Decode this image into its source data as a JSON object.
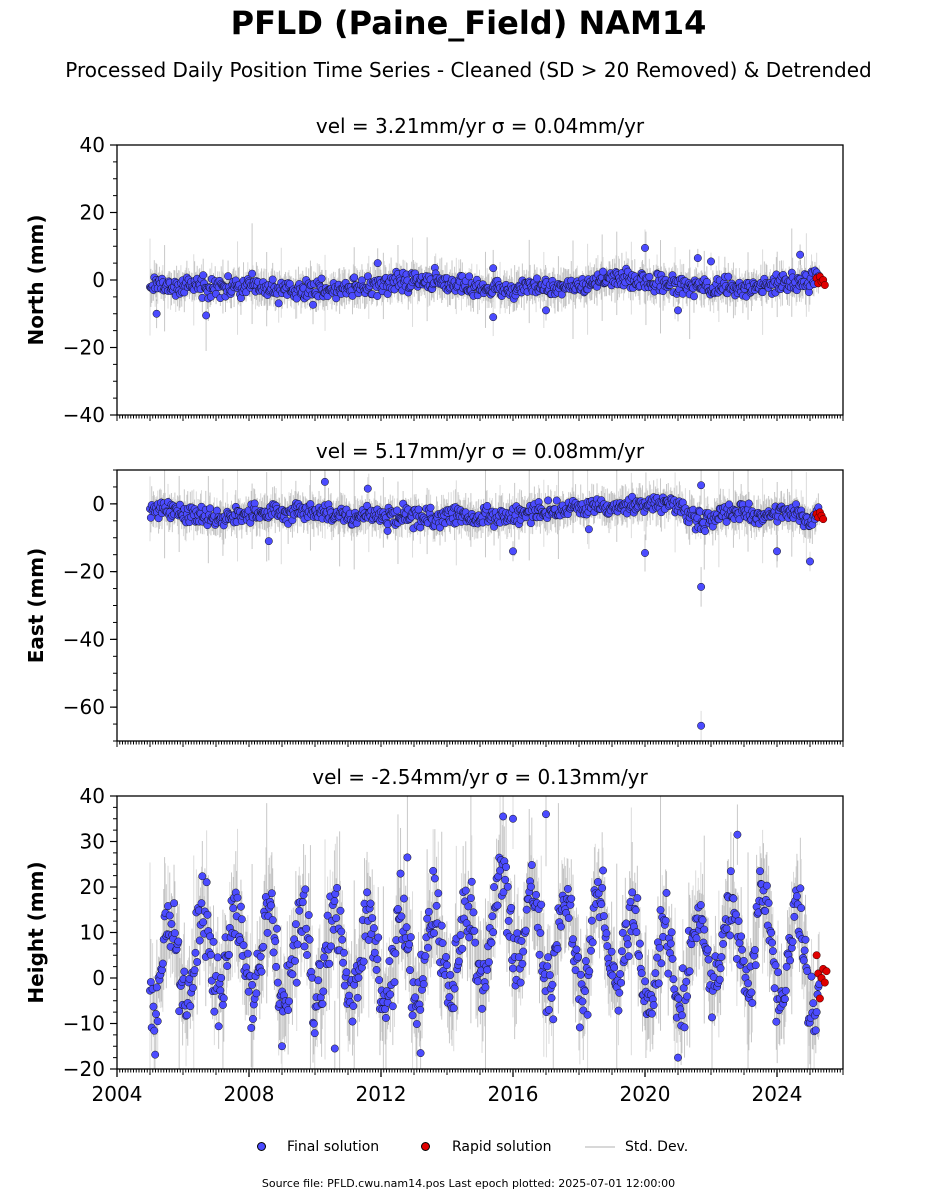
{
  "title": "PFLD (Paine_Field) NAM14",
  "subtitle": "Processed Daily Position Time Series - Cleaned (SD > 20 Removed) & Detrended",
  "footer": "Source file: PFLD.cwu.nam14.pos  Last epoch plotted: 2025-07-01 12:00:00",
  "legend": {
    "final": "Final solution",
    "rapid": "Rapid solution",
    "stddev": "Std. Dev."
  },
  "colors": {
    "final": "#4b4bff",
    "rapid": "#e00000",
    "stddev": "#d8d8d8",
    "errband": "#555555"
  },
  "chart_data": [
    {
      "type": "scatter",
      "title": "vel = 3.21mm/yr   σ = 0.04mm/yr",
      "vel_text": "vel = 3.21mm/yr",
      "sigma_text": "σ = 0.04mm/yr",
      "ylabel": "North (mm)",
      "ylim": [
        -40,
        40
      ],
      "yticks": [
        40,
        20,
        0,
        -20,
        -40
      ],
      "xlim": [
        2004.0,
        2026.0
      ],
      "series": [
        {
          "name": "Final solution",
          "noise": 1.4,
          "amp": 0.0,
          "knots": [
            [
              2005.0,
              -2
            ],
            [
              2006.0,
              -1.5
            ],
            [
              2008.0,
              -2.5
            ],
            [
              2010.0,
              -3
            ],
            [
              2012.0,
              -1.5
            ],
            [
              2013.0,
              0
            ],
            [
              2014.0,
              -1
            ],
            [
              2015.5,
              -3
            ],
            [
              2016.5,
              -2
            ],
            [
              2018.0,
              -2
            ],
            [
              2019.0,
              0.5
            ],
            [
              2020.5,
              -1
            ],
            [
              2022.0,
              -2.5
            ],
            [
              2023.5,
              -2
            ],
            [
              2025.0,
              -0.5
            ],
            [
              2025.3,
              0
            ]
          ],
          "outliers": [
            [
              2005.2,
              -10
            ],
            [
              2006.7,
              -10.5
            ],
            [
              2015.4,
              -11
            ],
            [
              2015.4,
              3.5
            ],
            [
              2017.0,
              -9
            ],
            [
              2020.0,
              9.5
            ],
            [
              2021.0,
              -9
            ],
            [
              2021.6,
              6.5
            ],
            [
              2022.0,
              5.5
            ],
            [
              2024.7,
              7.5
            ],
            [
              2011.9,
              5
            ]
          ]
        },
        {
          "name": "Rapid solution",
          "x": [
            2025.2,
            2025.25,
            2025.3,
            2025.35,
            2025.4,
            2025.45
          ],
          "y": [
            0.5,
            -1,
            1,
            -0.5,
            0,
            -1.5
          ]
        }
      ]
    },
    {
      "type": "scatter",
      "title": "vel = 5.17mm/yr   σ = 0.08mm/yr",
      "vel_text": "vel = 5.17mm/yr",
      "sigma_text": "σ = 0.08mm/yr",
      "ylabel": "East (mm)",
      "ylim": [
        -70,
        10
      ],
      "yticks": [
        0,
        -20,
        -40,
        -60
      ],
      "xlim": [
        2004.0,
        2026.0
      ],
      "series": [
        {
          "name": "Final solution",
          "noise": 1.4,
          "amp": 0.0,
          "knots": [
            [
              2005.0,
              -1
            ],
            [
              2006.0,
              -2.5
            ],
            [
              2007.0,
              -4
            ],
            [
              2008.0,
              -3
            ],
            [
              2009.0,
              -2.5
            ],
            [
              2010.0,
              -2
            ],
            [
              2011.0,
              -4
            ],
            [
              2012.0,
              -3.5
            ],
            [
              2013.0,
              -4
            ],
            [
              2014.0,
              -3.5
            ],
            [
              2015.0,
              -4.5
            ],
            [
              2016.0,
              -3
            ],
            [
              2017.0,
              -2.5
            ],
            [
              2018.0,
              -1.5
            ],
            [
              2019.0,
              -1.5
            ],
            [
              2020.0,
              0
            ],
            [
              2020.8,
              0
            ],
            [
              2021.5,
              -4
            ],
            [
              2021.9,
              -6
            ],
            [
              2022.5,
              -2
            ],
            [
              2023.5,
              -4
            ],
            [
              2024.5,
              -2
            ],
            [
              2025.0,
              -5
            ],
            [
              2025.3,
              -3
            ]
          ],
          "outliers": [
            [
              2008.6,
              -11
            ],
            [
              2010.3,
              6.5
            ],
            [
              2011.6,
              4.5
            ],
            [
              2012.2,
              -8
            ],
            [
              2016.0,
              -14
            ],
            [
              2018.3,
              -7.5
            ],
            [
              2020.0,
              -14.5
            ],
            [
              2021.7,
              -24.5
            ],
            [
              2021.7,
              -65.5
            ],
            [
              2021.7,
              5.5
            ],
            [
              2024.0,
              -14
            ],
            [
              2025.0,
              -17
            ]
          ]
        },
        {
          "name": "Rapid solution",
          "x": [
            2025.2,
            2025.25,
            2025.3,
            2025.35,
            2025.4
          ],
          "y": [
            -3,
            -4,
            -2.5,
            -3.5,
            -4.5
          ]
        }
      ]
    },
    {
      "type": "scatter",
      "title": "vel = -2.54mm/yr   σ = 0.13mm/yr",
      "vel_text": "vel = -2.54mm/yr",
      "sigma_text": "σ = 0.13mm/yr",
      "ylabel": "Height (mm)",
      "ylim": [
        -20,
        40
      ],
      "yticks": [
        40,
        30,
        20,
        10,
        0,
        -10,
        -20
      ],
      "xlim": [
        2004.0,
        2026.0
      ],
      "xticks": [
        "2004",
        "2008",
        "2012",
        "2016",
        "2020",
        "2024"
      ],
      "series": [
        {
          "name": "Final solution",
          "noise": 3.8,
          "amp": 10.0,
          "knots": [
            [
              2005.0,
              3
            ],
            [
              2007.0,
              6
            ],
            [
              2009.0,
              4
            ],
            [
              2011.0,
              5
            ],
            [
              2013.0,
              4
            ],
            [
              2015.0,
              8
            ],
            [
              2015.8,
              14
            ],
            [
              2016.5,
              9
            ],
            [
              2018.0,
              7
            ],
            [
              2019.0,
              8
            ],
            [
              2020.0,
              3
            ],
            [
              2021.0,
              1
            ],
            [
              2022.0,
              7
            ],
            [
              2023.0,
              9
            ],
            [
              2024.0,
              6
            ],
            [
              2025.3,
              2
            ]
          ],
          "outliers": [
            [
              2010.6,
              -15.5
            ],
            [
              2012.8,
              26.5
            ],
            [
              2016.0,
              35
            ],
            [
              2015.7,
              35.5
            ],
            [
              2017.0,
              36
            ],
            [
              2021.0,
              -17.5
            ],
            [
              2022.8,
              31.5
            ],
            [
              2013.2,
              -16.5
            ],
            [
              2009.0,
              -15
            ]
          ]
        },
        {
          "name": "Rapid solution",
          "x": [
            2025.2,
            2025.25,
            2025.3,
            2025.35,
            2025.4,
            2025.45,
            2025.5
          ],
          "y": [
            5,
            1,
            -4.5,
            0,
            2,
            -1,
            1.5
          ]
        }
      ]
    }
  ]
}
